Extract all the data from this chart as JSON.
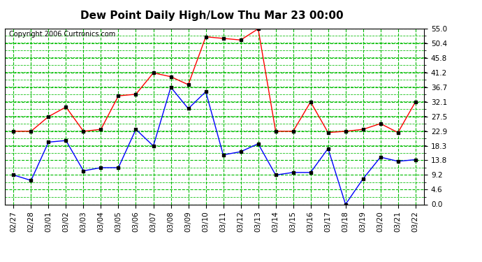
{
  "title": "Dew Point Daily High/Low Thu Mar 23 00:00",
  "copyright": "Copyright 2006 Curtronics.com",
  "dates": [
    "02/27",
    "02/28",
    "03/01",
    "03/02",
    "03/03",
    "03/04",
    "03/05",
    "03/06",
    "03/07",
    "03/08",
    "03/09",
    "03/10",
    "03/11",
    "03/12",
    "03/13",
    "03/14",
    "03/15",
    "03/16",
    "03/17",
    "03/18",
    "03/19",
    "03/20",
    "03/21",
    "03/22"
  ],
  "high_red": [
    22.9,
    22.9,
    27.5,
    30.5,
    22.9,
    23.5,
    34.0,
    34.5,
    41.2,
    40.0,
    37.5,
    52.5,
    52.0,
    51.5,
    55.0,
    22.9,
    22.9,
    32.1,
    22.5,
    22.9,
    23.5,
    25.3,
    22.5,
    32.1
  ],
  "low_blue": [
    9.2,
    7.5,
    19.5,
    20.0,
    10.5,
    11.5,
    11.5,
    23.5,
    18.3,
    36.7,
    30.0,
    35.3,
    15.5,
    16.5,
    19.0,
    9.2,
    10.0,
    10.0,
    17.5,
    0.0,
    8.0,
    14.8,
    13.5,
    14.0
  ],
  "ylim": [
    0.0,
    55.0
  ],
  "yticks": [
    0.0,
    4.6,
    9.2,
    13.8,
    18.3,
    22.9,
    27.5,
    32.1,
    36.7,
    41.2,
    45.8,
    50.4,
    55.0
  ],
  "bg_color": "#ffffff",
  "plot_bg": "#ffffff",
  "grid_major_color": "#00bb00",
  "grid_minor_color": "#00bb00",
  "line_color_high": "#ff0000",
  "line_color_low": "#0000ff",
  "marker": "s",
  "marker_color": "#000000",
  "marker_size": 2.5,
  "title_fontsize": 11,
  "tick_fontsize": 7.5,
  "copyright_fontsize": 7
}
